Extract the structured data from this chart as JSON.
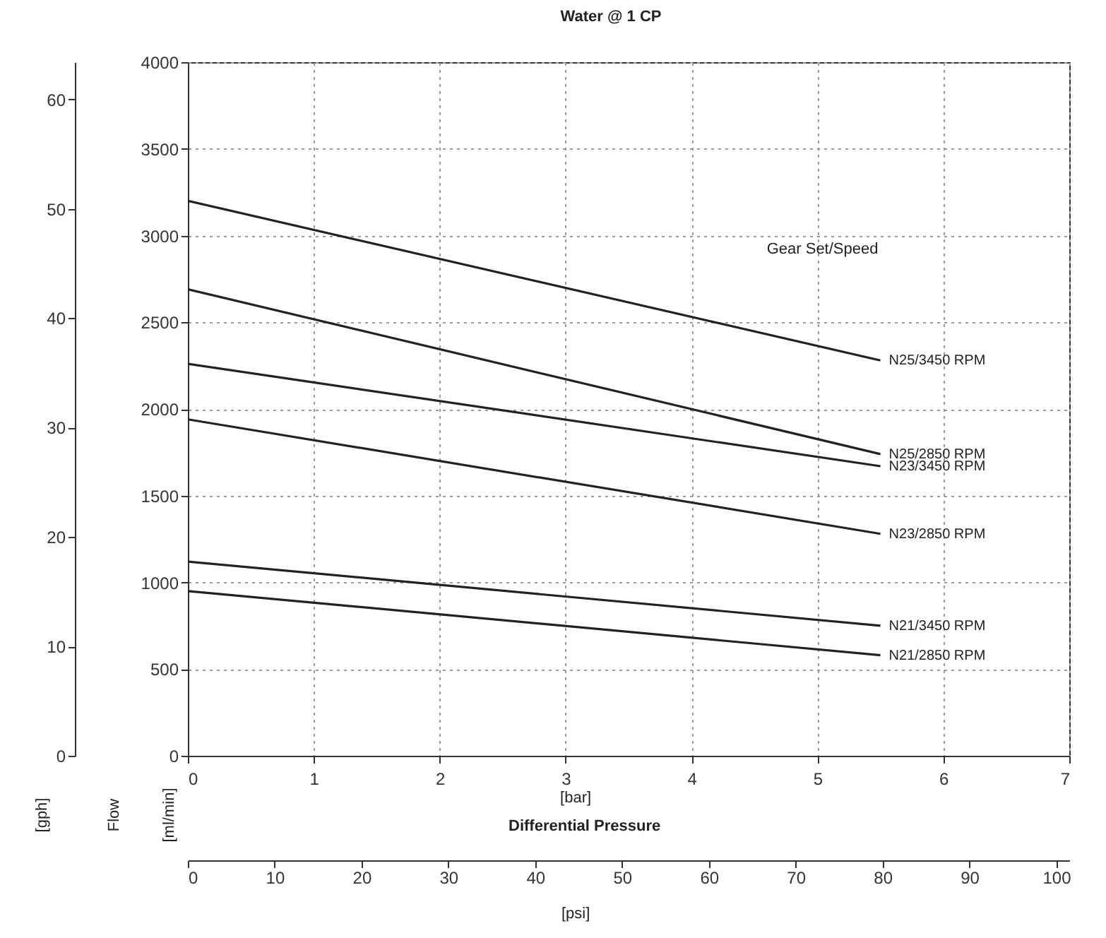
{
  "chart_data": {
    "type": "line",
    "title": "Water @ 1 CP",
    "xlabel": "[bar]",
    "ylabel": "[ml/min]",
    "y2label": "[gph]",
    "x2label": "[psi]",
    "legend_title": "Gear Set/Speed",
    "annotations": [
      "Flow",
      "Differential Pressure"
    ],
    "x": [
      0,
      5.5
    ],
    "xlim": [
      0,
      7
    ],
    "xticks": [
      0,
      1,
      2,
      3,
      4,
      5,
      6,
      7
    ],
    "ylim": [
      0,
      4000
    ],
    "yticks": [
      0,
      500,
      1000,
      1500,
      2000,
      2500,
      3000,
      3500,
      4000
    ],
    "y2lim": [
      0,
      63.4
    ],
    "y2ticks": [
      0,
      10,
      20,
      30,
      40,
      50,
      60
    ],
    "x2lim": [
      0,
      101.5
    ],
    "x2ticks": [
      0,
      10,
      20,
      30,
      40,
      50,
      60,
      70,
      80,
      90,
      100
    ],
    "grid": true,
    "marker": "none",
    "line_style": "solid",
    "series": [
      {
        "name": "N25/3450 RPM",
        "color": "#222222",
        "values": [
          3200,
          2280
        ]
      },
      {
        "name": "N25/2850 RPM",
        "color": "#222222",
        "values": [
          2690,
          1740
        ]
      },
      {
        "name": "N23/3450 RPM",
        "color": "#222222",
        "values": [
          2260,
          1670
        ]
      },
      {
        "name": "N23/2850 RPM",
        "color": "#222222",
        "values": [
          1940,
          1280
        ]
      },
      {
        "name": "N21/3450 RPM",
        "color": "#222222",
        "values": [
          1120,
          750
        ]
      },
      {
        "name": "N21/2850 RPM",
        "color": "#222222",
        "values": [
          950,
          580
        ]
      }
    ]
  }
}
